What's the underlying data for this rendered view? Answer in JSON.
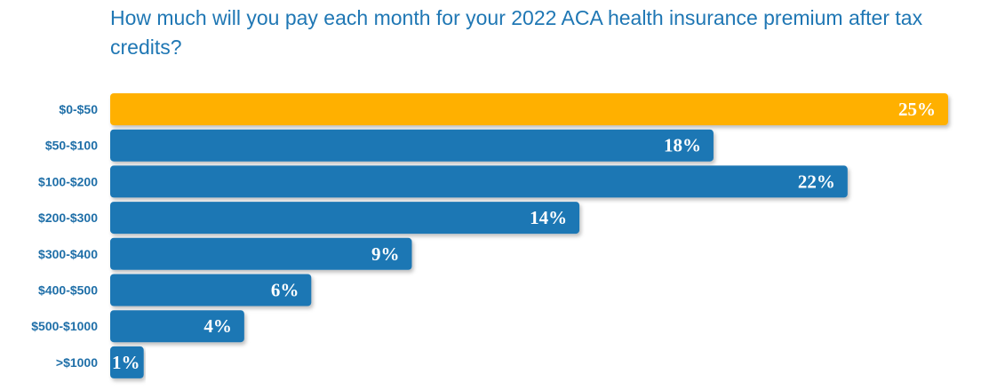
{
  "chart_data": {
    "type": "bar",
    "orientation": "horizontal",
    "title": "How much will you pay each month for your 2022 ACA health insurance premium after tax credits?",
    "categories": [
      "$0-$50",
      "$50-$100",
      "$100-$200",
      "$200-$300",
      "$300-$400",
      "$400-$500",
      "$500-$1000",
      ">$1000"
    ],
    "values": [
      25,
      18,
      22,
      14,
      9,
      6,
      4,
      1
    ],
    "value_labels": [
      "25%",
      "18%",
      "22%",
      "14%",
      "9%",
      "6%",
      "4%",
      "1%"
    ],
    "xlim": [
      0,
      25
    ],
    "grid": false,
    "highlight_index": 0,
    "colors": {
      "bar": "#1f77b4",
      "highlight": "#ffb000"
    }
  }
}
